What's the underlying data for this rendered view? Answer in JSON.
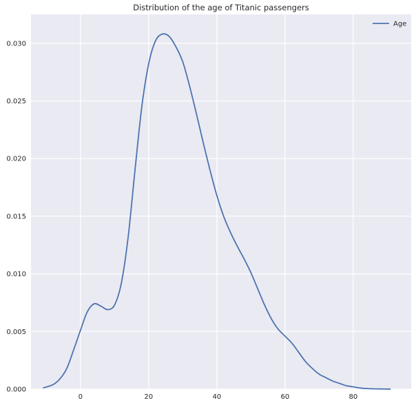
{
  "chart_data": {
    "type": "line",
    "title": "Distribution of the age of Titanic passengers",
    "xlabel": "",
    "ylabel": "",
    "xlim": [
      -14.5,
      97
    ],
    "ylim": [
      0,
      0.0325
    ],
    "x_ticks": [
      0,
      20,
      40,
      60,
      80
    ],
    "y_ticks": [
      0.0,
      0.005,
      0.01,
      0.015,
      0.02,
      0.025,
      0.03
    ],
    "x_tick_labels": [
      "0",
      "20",
      "40",
      "60",
      "80"
    ],
    "y_tick_labels": [
      "0.000",
      "0.005",
      "0.010",
      "0.015",
      "0.020",
      "0.025",
      "0.030"
    ],
    "grid": true,
    "legend_position": "top-right",
    "series": [
      {
        "name": "Age",
        "color": "#4c72b0",
        "x": [
          -11,
          -8,
          -6,
          -4,
          -2,
          0,
          2,
          4,
          6,
          8,
          10,
          12,
          14,
          16,
          18,
          20,
          22,
          24,
          26,
          28,
          30,
          32,
          34,
          36,
          38,
          40,
          42,
          44,
          46,
          48,
          50,
          52,
          54,
          56,
          58,
          60,
          62,
          64,
          66,
          68,
          70,
          72,
          74,
          76,
          78,
          80,
          82,
          84,
          86,
          88,
          90,
          91
        ],
        "values": [
          0.0001,
          0.0004,
          0.0009,
          0.0018,
          0.0034,
          0.0051,
          0.0067,
          0.0074,
          0.0072,
          0.0069,
          0.0073,
          0.0092,
          0.0132,
          0.019,
          0.0245,
          0.0282,
          0.0302,
          0.0308,
          0.0306,
          0.0297,
          0.0284,
          0.0263,
          0.0239,
          0.0214,
          0.019,
          0.0168,
          0.015,
          0.0136,
          0.0124,
          0.0113,
          0.0101,
          0.0087,
          0.0073,
          0.0061,
          0.0052,
          0.0046,
          0.004,
          0.0032,
          0.0024,
          0.0018,
          0.0013,
          0.001,
          0.0007,
          0.0005,
          0.0003,
          0.0002,
          0.0001,
          5e-05,
          3e-05,
          2e-05,
          1e-05,
          0.0
        ]
      }
    ]
  },
  "colors": {
    "plot_background": "#eaeaf2",
    "grid": "#ffffff",
    "line": "#4c72b0"
  }
}
